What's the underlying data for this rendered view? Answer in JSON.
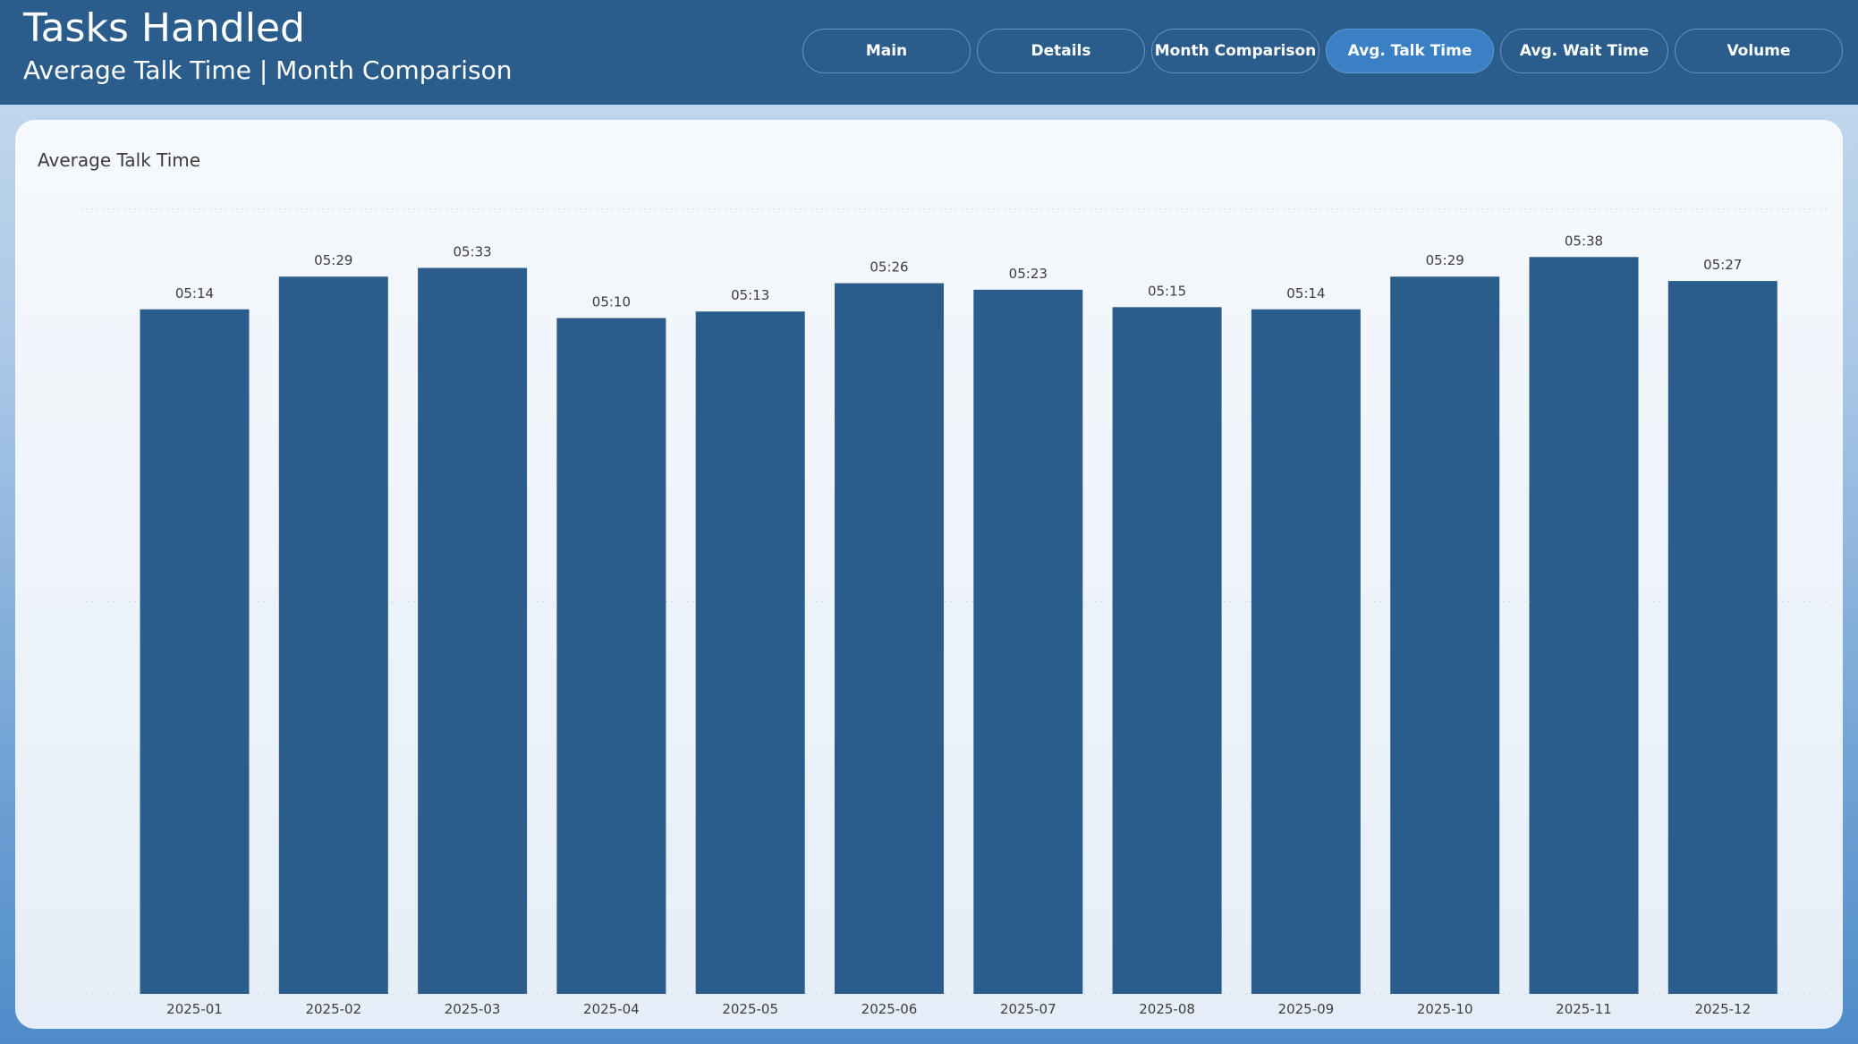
{
  "header": {
    "title": "Tasks Handled",
    "subtitle": "Average Talk Time | Month Comparison"
  },
  "nav": {
    "items": [
      {
        "label": "Main",
        "active": false
      },
      {
        "label": "Details",
        "active": false
      },
      {
        "label": "Month Comparison",
        "active": false
      },
      {
        "label": "Avg. Talk Time",
        "active": true
      },
      {
        "label": "Avg. Wait Time",
        "active": false
      },
      {
        "label": "Volume",
        "active": false
      }
    ]
  },
  "card": {
    "title": "Average Talk Time"
  },
  "colors": {
    "header": "#2a5d8c",
    "bar": "#2a5d8c",
    "active_button": "#3b7fc4"
  },
  "chart_data": {
    "type": "bar",
    "title": "Average Talk Time",
    "categories": [
      "2025-01",
      "2025-02",
      "2025-03",
      "2025-04",
      "2025-05",
      "2025-06",
      "2025-07",
      "2025-08",
      "2025-09",
      "2025-10",
      "2025-11",
      "2025-12"
    ],
    "values": [
      314,
      329,
      333,
      310,
      313,
      326,
      323,
      315,
      314,
      329,
      338,
      327
    ],
    "data_labels": [
      "05:14",
      "05:29",
      "05:33",
      "05:10",
      "05:13",
      "05:26",
      "05:23",
      "05:15",
      "05:14",
      "05:29",
      "05:38",
      "05:27"
    ],
    "value_unit": "seconds",
    "ylim": [
      0,
      360
    ],
    "grid": true,
    "legend": "none"
  }
}
